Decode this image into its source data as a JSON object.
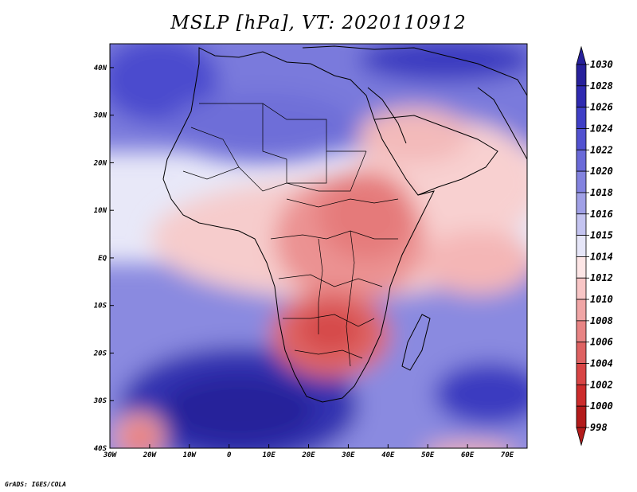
{
  "title": "MSLP [hPa], VT: 2020110912",
  "credit": "GrADS: IGES/COLA",
  "map": {
    "lat_labels": [
      "40N",
      "30N",
      "20N",
      "10N",
      "EQ",
      "10S",
      "20S",
      "30S",
      "40S"
    ],
    "lon_labels": [
      "30W",
      "20W",
      "10W",
      "0",
      "10E",
      "20E",
      "30E",
      "40E",
      "50E",
      "60E",
      "70E"
    ],
    "lat_range": [
      -40,
      45
    ],
    "lon_range": [
      -30,
      75
    ]
  },
  "colorbar": {
    "levels": [
      "1030",
      "1028",
      "1026",
      "1024",
      "1022",
      "1020",
      "1018",
      "1016",
      "1015",
      "1014",
      "1012",
      "1010",
      "1008",
      "1006",
      "1004",
      "1002",
      "1000",
      "998"
    ],
    "colors": [
      "#27209b",
      "#2f2ab0",
      "#3f3fc6",
      "#5252d0",
      "#6a6ad8",
      "#8383df",
      "#a0a0e6",
      "#c4c4f0",
      "#e6e6f8",
      "#fde6e6",
      "#f8c6c6",
      "#f0a6a6",
      "#e88484",
      "#de6262",
      "#d84545",
      "#cc2c2c",
      "#b31b1b"
    ]
  }
}
